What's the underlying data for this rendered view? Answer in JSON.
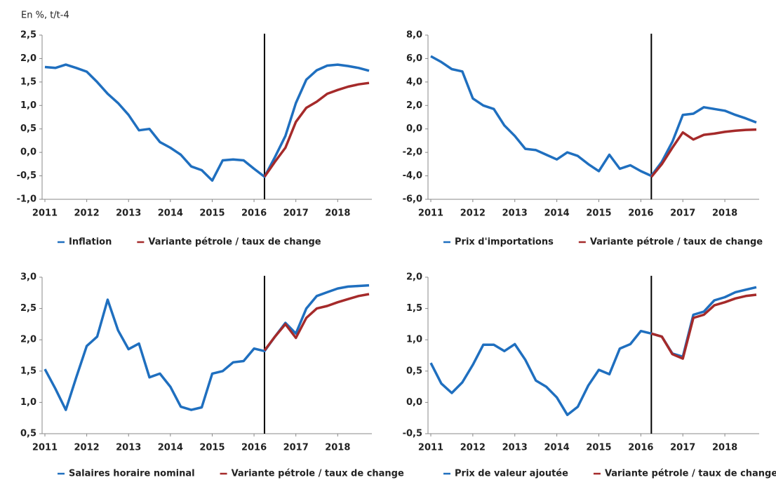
{
  "chart_data": [
    {
      "type": "line",
      "ylabel": "En %, t/t-4",
      "categories": [
        "2011",
        null,
        null,
        null,
        "2012",
        null,
        null,
        null,
        "2013",
        null,
        null,
        null,
        "2014",
        null,
        null,
        null,
        "2015",
        null,
        null,
        null,
        "2016",
        null,
        null,
        null,
        "2017",
        null,
        null,
        null,
        "2018",
        null,
        null,
        null
      ],
      "ylim": [
        -1.0,
        2.5
      ],
      "yticks": [
        {
          "value": -1.0,
          "label": "-1,0"
        },
        {
          "value": -0.5,
          "label": "-0,5"
        },
        {
          "value": 0.0,
          "label": "0,0"
        },
        {
          "value": 0.5,
          "label": "0,5"
        },
        {
          "value": 1.0,
          "label": "1,0"
        },
        {
          "value": 1.5,
          "label": "1,5"
        },
        {
          "value": 2.0,
          "label": "2,0"
        },
        {
          "value": 2.5,
          "label": "2,5"
        }
      ],
      "vline": 21,
      "series": [
        {
          "name": "Inflation",
          "color": "#1f6fbf",
          "values": [
            1.82,
            1.8,
            1.87,
            1.8,
            1.72,
            1.5,
            1.25,
            1.05,
            0.8,
            0.47,
            0.5,
            0.22,
            0.1,
            -0.05,
            -0.3,
            -0.38,
            -0.6,
            -0.17,
            -0.15,
            -0.17,
            -0.35,
            -0.52,
            -0.1,
            0.35,
            1.05,
            1.55,
            1.75,
            1.85,
            1.87,
            1.84,
            1.8,
            1.74
          ]
        },
        {
          "name": "Variante pétrole / taux de change",
          "color": "#a52a2a",
          "values": [
            null,
            null,
            null,
            null,
            null,
            null,
            null,
            null,
            null,
            null,
            null,
            null,
            null,
            null,
            null,
            null,
            null,
            null,
            null,
            null,
            null,
            -0.52,
            -0.2,
            0.1,
            0.65,
            0.95,
            1.08,
            1.25,
            1.33,
            1.4,
            1.45,
            1.48
          ]
        }
      ]
    },
    {
      "type": "line",
      "categories": [
        "2011",
        null,
        null,
        null,
        "2012",
        null,
        null,
        null,
        "2013",
        null,
        null,
        null,
        "2014",
        null,
        null,
        null,
        "2015",
        null,
        null,
        null,
        "2016",
        null,
        null,
        null,
        "2017",
        null,
        null,
        null,
        "2018",
        null,
        null,
        null
      ],
      "ylim": [
        -6.0,
        8.0
      ],
      "yticks": [
        {
          "value": -6.0,
          "label": "-6,0"
        },
        {
          "value": -4.0,
          "label": "-4,0"
        },
        {
          "value": -2.0,
          "label": "-2,0"
        },
        {
          "value": 0.0,
          "label": "0,0"
        },
        {
          "value": 2.0,
          "label": "2,0"
        },
        {
          "value": 4.0,
          "label": "4,0"
        },
        {
          "value": 6.0,
          "label": "6,0"
        },
        {
          "value": 8.0,
          "label": "8,0"
        }
      ],
      "vline": 21,
      "series": [
        {
          "name": "Prix d'importations",
          "color": "#1f6fbf",
          "values": [
            6.2,
            5.7,
            5.1,
            4.9,
            2.6,
            2.0,
            1.7,
            0.3,
            -0.6,
            -1.7,
            -1.8,
            -2.2,
            -2.6,
            -2.0,
            -2.3,
            -3.0,
            -3.6,
            -2.2,
            -3.4,
            -3.1,
            -3.6,
            -4.0,
            -2.8,
            -1.1,
            1.2,
            1.3,
            1.85,
            1.7,
            1.55,
            1.2,
            0.9,
            0.55
          ]
        },
        {
          "name": "Variante pétrole / taux de change",
          "color": "#a52a2a",
          "values": [
            null,
            null,
            null,
            null,
            null,
            null,
            null,
            null,
            null,
            null,
            null,
            null,
            null,
            null,
            null,
            null,
            null,
            null,
            null,
            null,
            null,
            -4.1,
            -3.0,
            -1.6,
            -0.3,
            -0.9,
            -0.5,
            -0.4,
            -0.25,
            -0.15,
            -0.08,
            -0.05
          ]
        }
      ]
    },
    {
      "type": "line",
      "categories": [
        "2011",
        null,
        null,
        null,
        "2012",
        null,
        null,
        null,
        "2013",
        null,
        null,
        null,
        "2014",
        null,
        null,
        null,
        "2015",
        null,
        null,
        null,
        "2016",
        null,
        null,
        null,
        "2017",
        null,
        null,
        null,
        "2018",
        null,
        null,
        null
      ],
      "ylim": [
        0.5,
        3.0
      ],
      "yticks": [
        {
          "value": 0.5,
          "label": "0,5"
        },
        {
          "value": 1.0,
          "label": "1,0"
        },
        {
          "value": 1.5,
          "label": "1,5"
        },
        {
          "value": 2.0,
          "label": "2,0"
        },
        {
          "value": 2.5,
          "label": "2,5"
        },
        {
          "value": 3.0,
          "label": "3,0"
        }
      ],
      "vline": 21,
      "series": [
        {
          "name": "Salaires horaire nominal",
          "color": "#1f6fbf",
          "values": [
            1.53,
            1.22,
            0.88,
            1.4,
            1.9,
            2.05,
            2.64,
            2.15,
            1.85,
            1.94,
            1.4,
            1.46,
            1.25,
            0.93,
            0.88,
            0.92,
            1.46,
            1.5,
            1.64,
            1.66,
            1.86,
            1.82,
            2.05,
            2.27,
            2.1,
            2.5,
            2.7,
            2.76,
            2.82,
            2.85,
            2.86,
            2.87
          ]
        },
        {
          "name": "Variante pétrole / taux de change",
          "color": "#a52a2a",
          "values": [
            null,
            null,
            null,
            null,
            null,
            null,
            null,
            null,
            null,
            null,
            null,
            null,
            null,
            null,
            null,
            null,
            null,
            null,
            null,
            null,
            null,
            1.83,
            2.05,
            2.25,
            2.03,
            2.35,
            2.5,
            2.54,
            2.6,
            2.65,
            2.7,
            2.73
          ]
        }
      ]
    },
    {
      "type": "line",
      "categories": [
        "2011",
        null,
        null,
        null,
        "2012",
        null,
        null,
        null,
        "2013",
        null,
        null,
        null,
        "2014",
        null,
        null,
        null,
        "2015",
        null,
        null,
        null,
        "2016",
        null,
        null,
        null,
        "2017",
        null,
        null,
        null,
        "2018",
        null,
        null,
        null
      ],
      "ylim": [
        -0.5,
        2.0
      ],
      "yticks": [
        {
          "value": -0.5,
          "label": "-0,5"
        },
        {
          "value": 0.0,
          "label": "0,0"
        },
        {
          "value": 0.5,
          "label": "0,5"
        },
        {
          "value": 1.0,
          "label": "1,0"
        },
        {
          "value": 1.5,
          "label": "1,5"
        },
        {
          "value": 2.0,
          "label": "2,0"
        }
      ],
      "vline": 21,
      "series": [
        {
          "name": "Prix de valeur ajoutée",
          "color": "#1f6fbf",
          "values": [
            0.63,
            0.3,
            0.15,
            0.32,
            0.6,
            0.92,
            0.92,
            0.82,
            0.93,
            0.68,
            0.35,
            0.25,
            0.08,
            -0.2,
            -0.07,
            0.27,
            0.52,
            0.45,
            0.86,
            0.93,
            1.14,
            1.1,
            1.05,
            0.78,
            0.73,
            1.4,
            1.45,
            1.63,
            1.68,
            1.76,
            1.8,
            1.84
          ]
        },
        {
          "name": "Variante pétrole / taux de change",
          "color": "#a52a2a",
          "values": [
            null,
            null,
            null,
            null,
            null,
            null,
            null,
            null,
            null,
            null,
            null,
            null,
            null,
            null,
            null,
            null,
            null,
            null,
            null,
            null,
            null,
            1.1,
            1.05,
            0.77,
            0.7,
            1.35,
            1.4,
            1.55,
            1.6,
            1.66,
            1.7,
            1.72
          ]
        }
      ]
    }
  ]
}
